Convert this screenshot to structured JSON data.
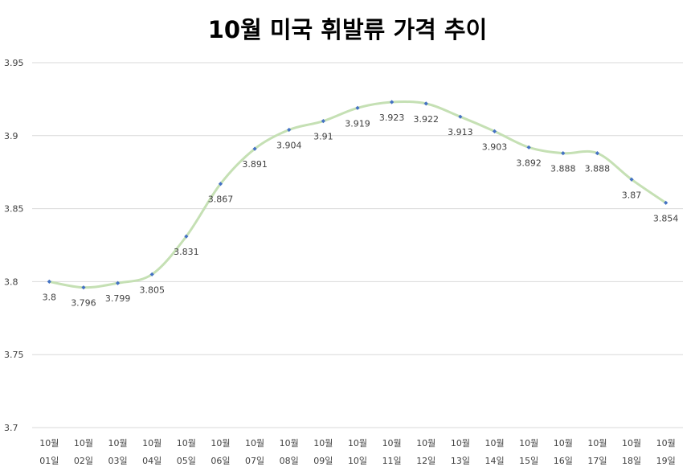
{
  "chart_data": {
    "type": "line",
    "title": "10월 미국 휘발류 가격 추이",
    "xlabel": "",
    "ylabel": "",
    "categories": [
      [
        "10월",
        "01일"
      ],
      [
        "10월",
        "02일"
      ],
      [
        "10월",
        "03일"
      ],
      [
        "10월",
        "04일"
      ],
      [
        "10월",
        "05일"
      ],
      [
        "10월",
        "06일"
      ],
      [
        "10월",
        "07일"
      ],
      [
        "10월",
        "08일"
      ],
      [
        "10월",
        "09일"
      ],
      [
        "10월",
        "10일"
      ],
      [
        "10월",
        "11일"
      ],
      [
        "10월",
        "12일"
      ],
      [
        "10월",
        "13일"
      ],
      [
        "10월",
        "14일"
      ],
      [
        "10월",
        "15일"
      ],
      [
        "10월",
        "16일"
      ],
      [
        "10월",
        "17일"
      ],
      [
        "10월",
        "18일"
      ],
      [
        "10월",
        "19일"
      ]
    ],
    "series": [
      {
        "values": [
          3.8,
          3.796,
          3.799,
          3.805,
          3.831,
          3.867,
          3.891,
          3.904,
          3.91,
          3.919,
          3.923,
          3.922,
          3.913,
          3.903,
          3.892,
          3.888,
          3.888,
          3.87,
          3.854
        ],
        "data_labels": [
          "3.8",
          "3.796",
          "3.799",
          "3.805",
          "3.831",
          "3.867",
          "3.891",
          "3.904",
          "3.91",
          "3.919",
          "3.923",
          "3.922",
          "3.913",
          "3.903",
          "3.892",
          "3.888",
          "3.888",
          "3.87",
          "3.854"
        ]
      }
    ],
    "ylim": [
      3.7,
      3.95
    ],
    "yticks": [
      3.95,
      3.9,
      3.85,
      3.8,
      3.75,
      3.7
    ],
    "ytick_labels": [
      "3.95",
      "3.9",
      "3.85",
      "3.8",
      "3.75",
      "3.7"
    ],
    "grid": true,
    "smooth": true,
    "colors": {
      "line": "#c5e0b4",
      "marker": "#4472c4",
      "grid": "#d9d9d9",
      "text": "#404040"
    }
  }
}
